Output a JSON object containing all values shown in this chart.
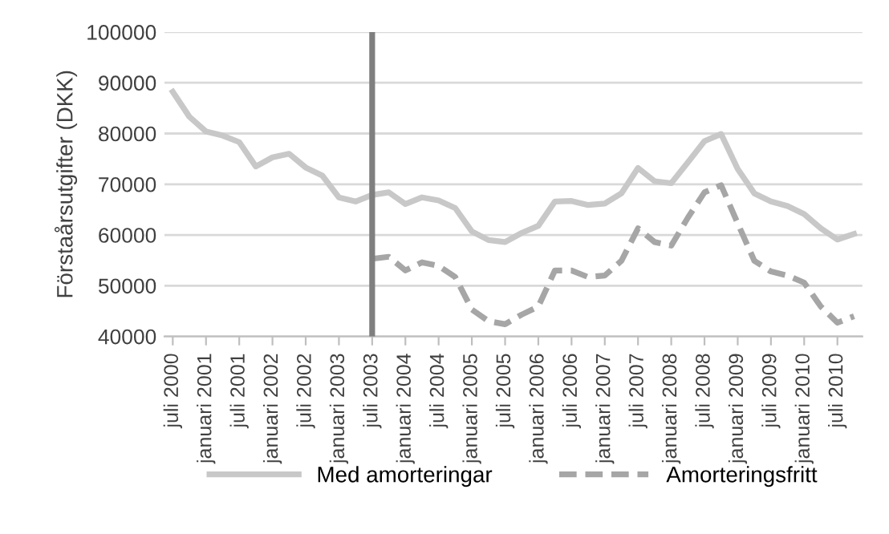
{
  "chart_data": {
    "type": "line",
    "ylabel": "Förstaårsutgifter (DKK)",
    "categories": [
      "juli 2000",
      null,
      "januari 2001",
      null,
      "juli 2001",
      null,
      "januari 2002",
      null,
      "juli 2002",
      null,
      "januari 2003",
      null,
      "juli 2003",
      null,
      "januari 2004",
      null,
      "juli 2004",
      null,
      "januari 2005",
      null,
      "juli 2005",
      null,
      "januari 2006",
      null,
      "juli 2006",
      null,
      "januari 2007",
      null,
      "juli 2007",
      null,
      "januari 2008",
      null,
      "juli 2008",
      null,
      "januari 2009",
      null,
      "juli 2009",
      null,
      "januari 2010",
      null,
      "juli 2010",
      null
    ],
    "series": [
      {
        "name": "Med amorteringar",
        "color": "#c8c8c8",
        "line_style": "solid",
        "values": [
          88200,
          83300,
          80400,
          79600,
          78300,
          73500,
          75300,
          76000,
          73300,
          71700,
          67400,
          66600,
          67900,
          68400,
          66100,
          67400,
          66800,
          65300,
          60700,
          59000,
          58600,
          60400,
          61800,
          66600,
          66700,
          65900,
          66200,
          68200,
          73200,
          70600,
          70200,
          74300,
          78500,
          79900,
          73000,
          68200,
          66600,
          65700,
          64100,
          61300,
          59100,
          60200
        ]
      },
      {
        "name": "Amorteringsfritt",
        "color": "#a6a6a6",
        "line_style": "dashed",
        "values": [
          null,
          null,
          null,
          null,
          null,
          null,
          null,
          null,
          null,
          null,
          null,
          null,
          55300,
          55700,
          53000,
          54600,
          53900,
          51700,
          45300,
          43000,
          42400,
          44300,
          45900,
          53000,
          53000,
          51700,
          52000,
          54900,
          61300,
          58600,
          57900,
          63400,
          68400,
          69800,
          62300,
          54900,
          52800,
          52000,
          50600,
          45900,
          42700,
          44000
        ]
      }
    ],
    "ylim": [
      40000,
      100000
    ],
    "yticks": [
      40000,
      50000,
      60000,
      70000,
      80000,
      90000,
      100000
    ],
    "ref_lines": [
      {
        "axis": "x",
        "value": "juli 2003",
        "color": "#7f7f7f"
      }
    ],
    "grid": "y",
    "legend": "bottom",
    "marker": "none"
  }
}
